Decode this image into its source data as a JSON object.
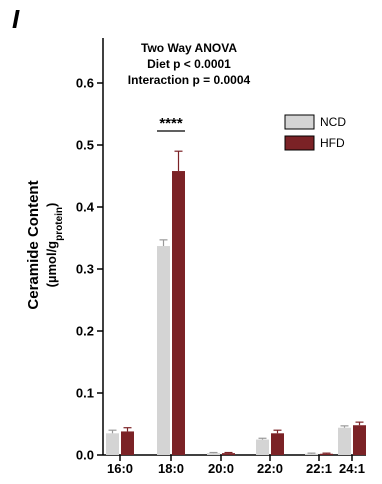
{
  "panel_label": "I",
  "colors": {
    "NCD": "#d4d4d4",
    "HFD": "#7b2226",
    "axis": "#000000"
  },
  "chart_data": {
    "type": "bar",
    "title_lines": [
      "Two Way ANOVA",
      "Diet p < 0.0001",
      "Interaction p = 0.0004"
    ],
    "ylabel": "Ceramide Content",
    "ylabel_units": {
      "open": "(µmol/g",
      "sub": "protein",
      "close": ")"
    },
    "xlabel": "",
    "ylim": [
      0,
      0.65
    ],
    "yticks": [
      {
        "value": 0.0,
        "label": "0.0"
      },
      {
        "value": 0.1,
        "label": "0.1"
      },
      {
        "value": 0.2,
        "label": "0.2"
      },
      {
        "value": 0.3,
        "label": "0.3"
      },
      {
        "value": 0.4,
        "label": "0.4"
      },
      {
        "value": 0.5,
        "label": "0.5"
      },
      {
        "value": 0.6,
        "label": "0.6"
      }
    ],
    "categories": [
      "16:0",
      "18:0",
      "20:0",
      "22:0",
      "22:1",
      "24:1"
    ],
    "series": [
      {
        "name": "NCD",
        "values": [
          0.035,
          0.337,
          0.003,
          0.025,
          0.002,
          0.044
        ],
        "errors": [
          0.005,
          0.01,
          0.001,
          0.002,
          0.001,
          0.003
        ]
      },
      {
        "name": "HFD",
        "values": [
          0.038,
          0.458,
          0.003,
          0.035,
          0.002,
          0.048
        ],
        "errors": [
          0.006,
          0.032,
          0.001,
          0.005,
          0.001,
          0.005
        ]
      }
    ],
    "legend_position": "top-right",
    "annotations": [
      {
        "category": "18:0",
        "text": "****"
      }
    ]
  }
}
